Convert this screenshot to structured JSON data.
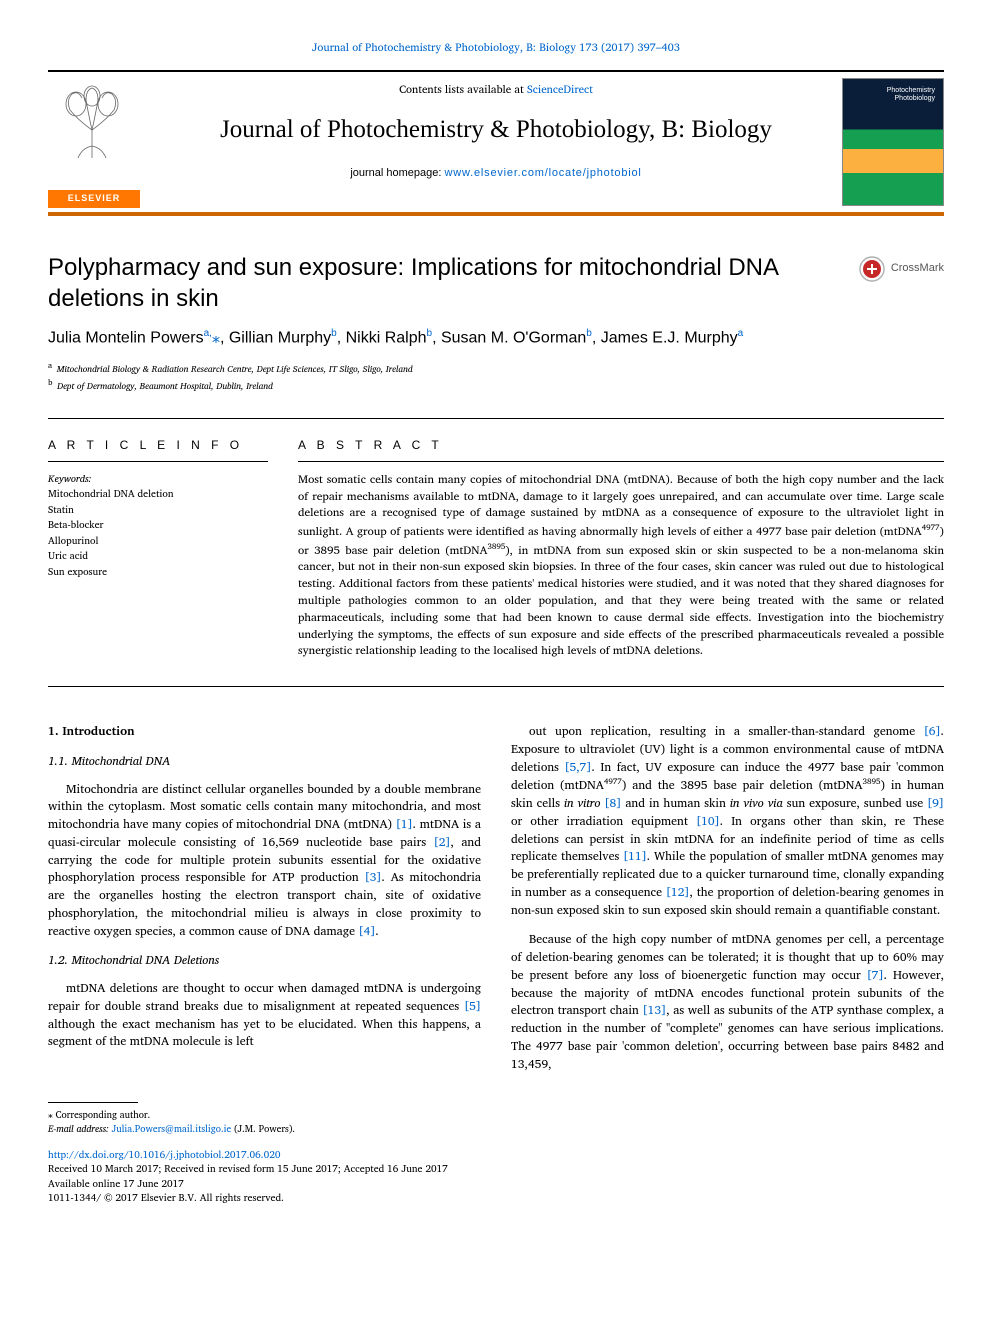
{
  "header_citation": {
    "journal": "Journal of Photochemistry & Photobiology, B: Biology",
    "vol_pages": "173 (2017) 397–403",
    "link_text": "Journal of Photochemistry & Photobiology, B: Biology 173 (2017) 397–403"
  },
  "masthead": {
    "contents_prefix": "Contents lists available at ",
    "contents_link": "ScienceDirect",
    "journal_title": "Journal of Photochemistry & Photobiology, B: Biology",
    "homepage_prefix": "journal homepage: ",
    "homepage_link": "www.elsevier.com/locate/jphotobiol",
    "elsevier_label": "ELSEVIER"
  },
  "crossmark_label": "CrossMark",
  "article": {
    "title": "Polypharmacy and sun exposure: Implications for mitochondrial DNA deletions in skin",
    "authors_html": "Julia Montelin Powers<sup>a,</sup><span class=\"corr\">⁎</span>, Gillian Murphy<sup>b</sup>, Nikki Ralph<sup>b</sup>, Susan M. O'Gorman<sup>b</sup>, James E.J. Murphy<sup>a</sup>",
    "affiliations": [
      {
        "key": "a",
        "text": "Mitochondrial Biology & Radiation Research Centre, Dept Life Sciences, IT Sligo, Sligo, Ireland"
      },
      {
        "key": "b",
        "text": "Dept of Dermatology, Beaumont Hospital, Dublin, Ireland"
      }
    ]
  },
  "article_info": {
    "heading": "A R T I C L E  I N F O",
    "keywords_label": "Keywords:",
    "keywords": [
      "Mitochondrial DNA deletion",
      "Statin",
      "Beta-blocker",
      "Allopurinol",
      "Uric acid",
      "Sun exposure"
    ]
  },
  "abstract": {
    "heading": "A B S T R A C T",
    "text": "Most somatic cells contain many copies of mitochondrial DNA (mtDNA). Because of both the high copy number and the lack of repair mechanisms available to mtDNA, damage to it largely goes unrepaired, and can accumulate over time. Large scale deletions are a recognised type of damage sustained by mtDNA as a consequence of exposure to the ultraviolet light in sunlight. A group of patients were identified as having abnormally high levels of either a 4977 base pair deletion (mtDNA<sup>4977</sup>) or 3895 base pair deletion (mtDNA<sup>3895</sup>), in mtDNA from sun exposed skin or skin suspected to be a non-melanoma skin cancer, but not in their non-sun exposed skin biopsies. In three of the four cases, skin cancer was ruled out due to histological testing. Additional factors from these patients' medical histories were studied, and it was noted that they shared diagnoses for multiple pathologies common to an older population, and that they were being treated with the same or related pharmaceuticals, including some that had been known to cause dermal side effects. Investigation into the biochemistry underlying the symptoms, the effects of sun exposure and side effects of the prescribed pharmaceuticals revealed a possible synergistic relationship leading to the localised high levels of mtDNA deletions."
  },
  "sections": {
    "intro_num": "1. Introduction",
    "s11": "1.1. Mitochondrial DNA",
    "p11a": "Mitochondria are distinct cellular organelles bounded by a double membrane within the cytoplasm. Most somatic cells contain many mitochondria, and most mitochondria have many copies of mitochondrial DNA (mtDNA) <span class=\"cite\">[1]</span>. mtDNA is a quasi-circular molecule consisting of 16,569 nucleotide base pairs <span class=\"cite\">[2]</span>, and carrying the code for multiple protein subunits essential for the oxidative phosphorylation process responsible for ATP production <span class=\"cite\">[3]</span>. As mitochondria are the organelles hosting the electron transport chain, site of oxidative phosphorylation, the mitochondrial milieu is always in close proximity to reactive oxygen species, a common cause of DNA damage <span class=\"cite\">[4]</span>.",
    "s12": "1.2. Mitochondrial DNA Deletions",
    "p12a": "mtDNA deletions are thought to occur when damaged mtDNA is undergoing repair for double strand breaks due to misalignment at repeated sequences <span class=\"cite\">[5]</span> although the exact mechanism has yet to be elucidated. When this happens, a segment of the mtDNA molecule is left",
    "p12b": "out upon replication, resulting in a smaller-than-standard genome <span class=\"cite\">[6]</span>. Exposure to ultraviolet (UV) light is a common environmental cause of mtDNA deletions <span class=\"cite\">[5,7]</span>. In fact, UV exposure can induce the 4977 base pair 'common deletion (mtDNA<sup>4977</sup>) and the 3895 base pair deletion (mtDNA<sup>3895</sup>) in human skin cells <i>in vitro</i> <span class=\"cite\">[8]</span> and in human skin <i>in vivo via</i> sun exposure, sunbed use <span class=\"cite\">[9]</span> or other irradiation equipment <span class=\"cite\">[10]</span>. In organs other than skin, re These deletions can persist in skin mtDNA for an indefinite period of time as cells replicate themselves <span class=\"cite\">[11]</span>. While the population of smaller mtDNA genomes may be preferentially replicated due to a quicker turnaround time, clonally expanding in number as a consequence <span class=\"cite\">[12]</span>, the proportion of deletion-bearing genomes in non-sun exposed skin to sun exposed skin should remain a quantifiable constant.",
    "p12c": "Because of the high copy number of mtDNA genomes per cell, a percentage of deletion-bearing genomes can be tolerated; it is thought that up to 60% may be present before any loss of bioenergetic function may occur <span class=\"cite\">[7]</span>. However, because the majority of mtDNA encodes functional protein subunits of the electron transport chain <span class=\"cite\">[13]</span>, as well as subunits of the ATP synthase complex, a reduction in the number of \"complete\" genomes can have serious implications. The 4977 base pair 'common deletion', occurring between base pairs 8482 and 13,459,"
  },
  "footnotes": {
    "corr": "⁎ Corresponding author.",
    "email_label": "E-mail address:",
    "email": "Julia.Powers@mail.itsligo.ie",
    "email_who": "(J.M. Powers)."
  },
  "doi_link": "http://dx.doi.org/10.1016/j.jphotobiol.2017.06.020",
  "history": {
    "received": "Received 10 March 2017; Received in revised form 15 June 2017; Accepted 16 June 2017",
    "online": "Available online 17 June 2017",
    "copyright": "1011-1344/ © 2017 Elsevier B.V. All rights reserved."
  },
  "colors": {
    "link": "#0066cc",
    "elsevier_orange": "#ff7700",
    "rule_orange": "#cc6600"
  }
}
